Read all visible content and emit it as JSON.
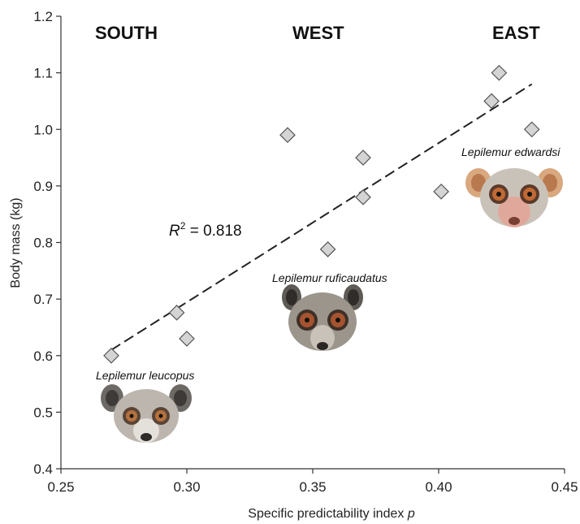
{
  "chart_data": {
    "type": "scatter",
    "xlabel": "Specific predictability index ",
    "xlabel_italic": "p",
    "ylabel": "Body mass (kg)",
    "xlim": [
      0.25,
      0.45
    ],
    "ylim": [
      0.4,
      1.2
    ],
    "x_ticks": [
      "0.25",
      "0.30",
      "0.35",
      "0.40",
      "0.45"
    ],
    "y_ticks": [
      "0.4",
      "0.5",
      "0.6",
      "0.7",
      "0.8",
      "0.9",
      "1.0",
      "1.1",
      "1.2"
    ],
    "x_tick_values": [
      0.25,
      0.3,
      0.35,
      0.4,
      0.45
    ],
    "y_tick_values": [
      0.4,
      0.5,
      0.6,
      0.7,
      0.8,
      0.9,
      1.0,
      1.1,
      1.2
    ],
    "points": [
      {
        "x": 0.27,
        "y": 0.6
      },
      {
        "x": 0.296,
        "y": 0.676
      },
      {
        "x": 0.3,
        "y": 0.63
      },
      {
        "x": 0.34,
        "y": 0.99
      },
      {
        "x": 0.356,
        "y": 0.788
      },
      {
        "x": 0.37,
        "y": 0.95
      },
      {
        "x": 0.37,
        "y": 0.88
      },
      {
        "x": 0.401,
        "y": 0.89
      },
      {
        "x": 0.421,
        "y": 1.05
      },
      {
        "x": 0.424,
        "y": 1.1
      },
      {
        "x": 0.437,
        "y": 1.0
      }
    ],
    "trendline": {
      "x0": 0.27,
      "y0": 0.61,
      "x1": 0.437,
      "y1": 1.08,
      "style": "dashed"
    },
    "regions": [
      "SOUTH",
      "WEST",
      "EAST"
    ],
    "annotation": {
      "r_letter": "R",
      "r_sup": "2",
      "text": " = 0.818"
    },
    "species": [
      "Lepilemur leucopus",
      "Lepilemur ruficaudatus",
      "Lepilemur edwardsi"
    ],
    "marker": "diamond",
    "marker_color": "#d4d4d4",
    "grid": false
  }
}
